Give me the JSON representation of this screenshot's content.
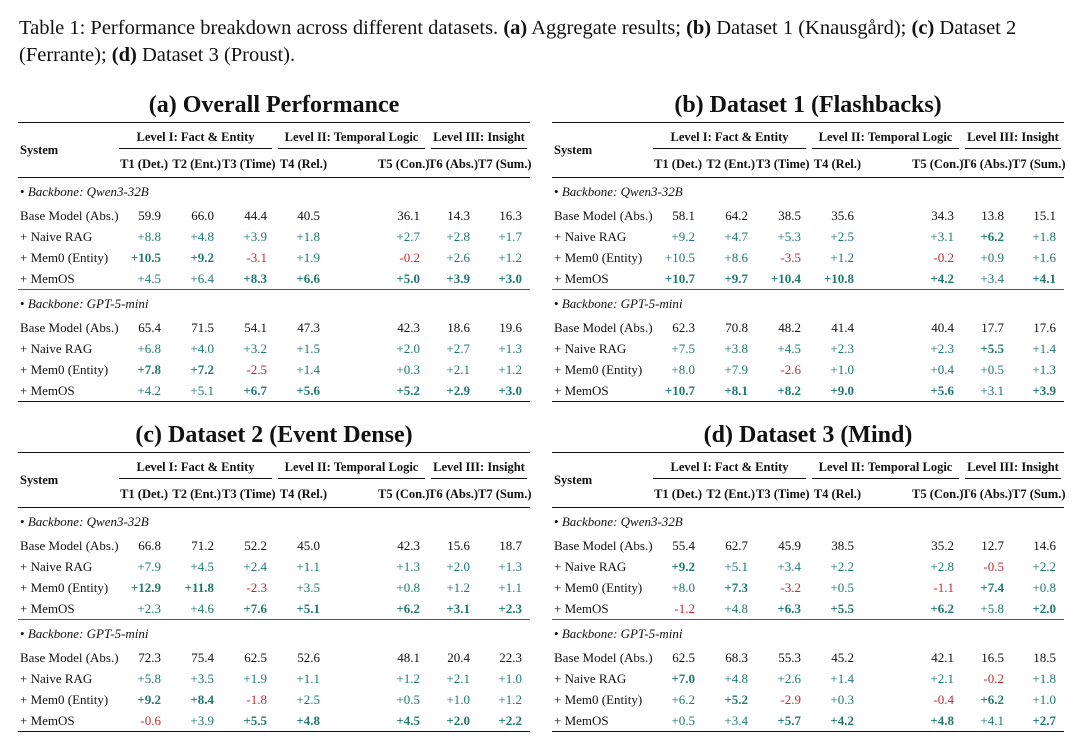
{
  "caption": [
    {
      "text": "Table 1: Performance breakdown across different datasets. "
    },
    {
      "text": "(a)",
      "bold": true
    },
    {
      "text": " Aggregate results; "
    },
    {
      "text": "(b)",
      "bold": true
    },
    {
      "text": " Dataset 1 (Knausgård); "
    },
    {
      "text": "(c)",
      "bold": true
    },
    {
      "text": " Dataset 2 (Ferrante); "
    },
    {
      "text": "(d)",
      "bold": true
    },
    {
      "text": " Dataset 3 (Proust)."
    }
  ],
  "header": {
    "system": "System",
    "groups": [
      "Level I: Fact & Entity",
      "Level II: Temporal Logic",
      "Level III: Insight"
    ],
    "columns": [
      "T1 (Det.)",
      "T2 (Ent.)",
      "T3 (Time)",
      "T4 (Rel.)",
      "T5 (Con.)",
      "T6 (Abs.)",
      "T7 (Sum.)"
    ]
  },
  "panels": [
    {
      "title": "(a) Overall Performance",
      "blocks": [
        {
          "backbone": "Backbone: Qwen3-32B",
          "rows": [
            {
              "system": "Base Model (Abs.)",
              "cells": [
                "59.9",
                "66.0",
                "44.4",
                "40.5",
                "36.1",
                "14.3",
                "16.3"
              ]
            },
            {
              "system": "+ Naive RAG",
              "cells": [
                "+8.8",
                "+4.8",
                "+3.9",
                "+1.8",
                "+2.7",
                "+2.8",
                "+1.7"
              ]
            },
            {
              "system": "+ Mem0 (Entity)",
              "cells": [
                "+10.5",
                "+9.2",
                "-3.1",
                "+1.9",
                "-0.2",
                "+2.6",
                "+1.2"
              ],
              "bold": [
                0,
                1
              ]
            },
            {
              "system": "+ MemOS",
              "cells": [
                "+4.5",
                "+6.4",
                "+8.3",
                "+6.6",
                "+5.0",
                "+3.9",
                "+3.0"
              ],
              "bold": [
                2,
                3,
                4,
                5,
                6
              ]
            }
          ]
        },
        {
          "backbone": "Backbone: GPT-5-mini",
          "rows": [
            {
              "system": "Base Model (Abs.)",
              "cells": [
                "65.4",
                "71.5",
                "54.1",
                "47.3",
                "42.3",
                "18.6",
                "19.6"
              ]
            },
            {
              "system": "+ Naive RAG",
              "cells": [
                "+6.8",
                "+4.0",
                "+3.2",
                "+1.5",
                "+2.0",
                "+2.7",
                "+1.3"
              ]
            },
            {
              "system": "+ Mem0 (Entity)",
              "cells": [
                "+7.8",
                "+7.2",
                "-2.5",
                "+1.4",
                "+0.3",
                "+2.1",
                "+1.2"
              ],
              "bold": [
                0,
                1
              ]
            },
            {
              "system": "+ MemOS",
              "cells": [
                "+4.2",
                "+5.1",
                "+6.7",
                "+5.6",
                "+5.2",
                "+2.9",
                "+3.0"
              ],
              "bold": [
                2,
                3,
                4,
                5,
                6
              ]
            }
          ]
        }
      ]
    },
    {
      "title": "(b) Dataset 1 (Flashbacks)",
      "blocks": [
        {
          "backbone": "Backbone: Qwen3-32B",
          "rows": [
            {
              "system": "Base Model (Abs.)",
              "cells": [
                "58.1",
                "64.2",
                "38.5",
                "35.6",
                "34.3",
                "13.8",
                "15.1"
              ]
            },
            {
              "system": "+ Naive RAG",
              "cells": [
                "+9.2",
                "+4.7",
                "+5.3",
                "+2.5",
                "+3.1",
                "+6.2",
                "+1.8"
              ],
              "bold": [
                5
              ]
            },
            {
              "system": "+ Mem0 (Entity)",
              "cells": [
                "+10.5",
                "+8.6",
                "-3.5",
                "+1.2",
                "-0.2",
                "+0.9",
                "+1.6"
              ]
            },
            {
              "system": "+ MemOS",
              "cells": [
                "+10.7",
                "+9.7",
                "+10.4",
                "+10.8",
                "+4.2",
                "+3.4",
                "+4.1"
              ],
              "bold": [
                0,
                1,
                2,
                3,
                4,
                6
              ]
            }
          ]
        },
        {
          "backbone": "Backbone: GPT-5-mini",
          "rows": [
            {
              "system": "Base Model (Abs.)",
              "cells": [
                "62.3",
                "70.8",
                "48.2",
                "41.4",
                "40.4",
                "17.7",
                "17.6"
              ]
            },
            {
              "system": "+ Naive RAG",
              "cells": [
                "+7.5",
                "+3.8",
                "+4.5",
                "+2.3",
                "+2.3",
                "+5.5",
                "+1.4"
              ],
              "bold": [
                5
              ]
            },
            {
              "system": "+ Mem0 (Entity)",
              "cells": [
                "+8.0",
                "+7.9",
                "-2.6",
                "+1.0",
                "+0.4",
                "+0.5",
                "+1.3"
              ]
            },
            {
              "system": "+ MemOS",
              "cells": [
                "+10.7",
                "+8.1",
                "+8.2",
                "+9.0",
                "+5.6",
                "+3.1",
                "+3.9"
              ],
              "bold": [
                0,
                1,
                2,
                3,
                4,
                6
              ]
            }
          ]
        }
      ]
    },
    {
      "title": "(c) Dataset 2 (Event Dense)",
      "blocks": [
        {
          "backbone": "Backbone: Qwen3-32B",
          "rows": [
            {
              "system": "Base Model (Abs.)",
              "cells": [
                "66.8",
                "71.2",
                "52.2",
                "45.0",
                "42.3",
                "15.6",
                "18.7"
              ]
            },
            {
              "system": "+ Naive RAG",
              "cells": [
                "+7.9",
                "+4.5",
                "+2.4",
                "+1.1",
                "+1.3",
                "+2.0",
                "+1.3"
              ]
            },
            {
              "system": "+ Mem0 (Entity)",
              "cells": [
                "+12.9",
                "+11.8",
                "-2.3",
                "+3.5",
                "+0.8",
                "+1.2",
                "+1.1"
              ],
              "bold": [
                0,
                1
              ]
            },
            {
              "system": "+ MemOS",
              "cells": [
                "+2.3",
                "+4.6",
                "+7.6",
                "+5.1",
                "+6.2",
                "+3.1",
                "+2.3"
              ],
              "bold": [
                2,
                3,
                4,
                5,
                6
              ]
            }
          ]
        },
        {
          "backbone": "Backbone: GPT-5-mini",
          "rows": [
            {
              "system": "Base Model (Abs.)",
              "cells": [
                "72.3",
                "75.4",
                "62.5",
                "52.6",
                "48.1",
                "20.4",
                "22.3"
              ]
            },
            {
              "system": "+ Naive RAG",
              "cells": [
                "+5.8",
                "+3.5",
                "+1.9",
                "+1.1",
                "+1.2",
                "+2.1",
                "+1.0"
              ]
            },
            {
              "system": "+ Mem0 (Entity)",
              "cells": [
                "+9.2",
                "+8.4",
                "-1.8",
                "+2.5",
                "+0.5",
                "+1.0",
                "+1.2"
              ],
              "bold": [
                0,
                1
              ]
            },
            {
              "system": "+ MemOS",
              "cells": [
                "-0.6",
                "+3.9",
                "+5.5",
                "+4.8",
                "+4.5",
                "+2.0",
                "+2.2"
              ],
              "bold": [
                2,
                3,
                4,
                5,
                6
              ]
            }
          ]
        }
      ]
    },
    {
      "title": "(d) Dataset 3 (Mind)",
      "blocks": [
        {
          "backbone": "Backbone: Qwen3-32B",
          "rows": [
            {
              "system": "Base Model (Abs.)",
              "cells": [
                "55.4",
                "62.7",
                "45.9",
                "38.5",
                "35.2",
                "12.7",
                "14.6"
              ]
            },
            {
              "system": "+ Naive RAG",
              "cells": [
                "+9.2",
                "+5.1",
                "+3.4",
                "+2.2",
                "+2.8",
                "-0.5",
                "+2.2"
              ],
              "bold": [
                0
              ]
            },
            {
              "system": "+ Mem0 (Entity)",
              "cells": [
                "+8.0",
                "+7.3",
                "-3.2",
                "+0.5",
                "-1.1",
                "+7.4",
                "+0.8"
              ],
              "bold": [
                1,
                5
              ]
            },
            {
              "system": "+ MemOS",
              "cells": [
                "-1.2",
                "+4.8",
                "+6.3",
                "+5.5",
                "+6.2",
                "+5.8",
                "+2.0"
              ],
              "bold": [
                2,
                3,
                4,
                6
              ]
            }
          ]
        },
        {
          "backbone": "Backbone: GPT-5-mini",
          "rows": [
            {
              "system": "Base Model (Abs.)",
              "cells": [
                "62.5",
                "68.3",
                "55.3",
                "45.2",
                "42.1",
                "16.5",
                "18.5"
              ]
            },
            {
              "system": "+ Naive RAG",
              "cells": [
                "+7.0",
                "+4.8",
                "+2.6",
                "+1.4",
                "+2.1",
                "-0.2",
                "+1.8"
              ],
              "bold": [
                0
              ]
            },
            {
              "system": "+ Mem0 (Entity)",
              "cells": [
                "+6.2",
                "+5.2",
                "-2.9",
                "+0.3",
                "-0.4",
                "+6.2",
                "+1.0"
              ],
              "bold": [
                1,
                5
              ]
            },
            {
              "system": "+ MemOS",
              "cells": [
                "+0.5",
                "+3.4",
                "+5.7",
                "+4.2",
                "+4.8",
                "+4.1",
                "+2.7"
              ],
              "bold": [
                2,
                3,
                4,
                6
              ]
            }
          ]
        }
      ]
    }
  ]
}
